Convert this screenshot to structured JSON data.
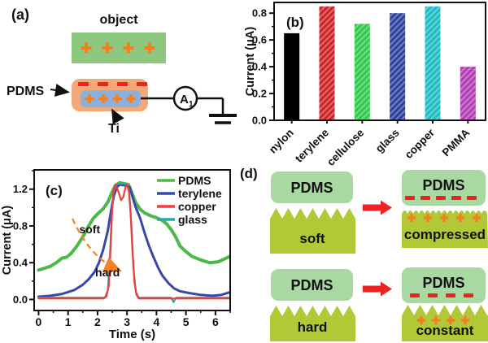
{
  "figure": {
    "panel_a": {
      "label": "(a)",
      "object_label": "object",
      "pdms_label": "PDMS",
      "ti_label": "Ti",
      "ammeter_label": "A",
      "ammeter_sub": "1",
      "colors": {
        "object_fill": "#8dc87e",
        "pdms_fill": "#f3a977",
        "electrode_fill": "#8ab0dc",
        "plus_charge": "#f57e20",
        "minus_charge": "#ee2222"
      }
    },
    "panel_d": {
      "label": "(d)",
      "rows": [
        {
          "pdms_top": "PDMS",
          "state": "soft",
          "pdms_result": "PDMS",
          "result_state": "compressed"
        },
        {
          "pdms_top": "PDMS",
          "state": "hard",
          "pdms_result": "PDMS",
          "result_state": "constant"
        }
      ],
      "colors": {
        "pdms_fill": "#a9d8a2",
        "block_fill": "#b3c836",
        "arrow": "#ee2222",
        "plus_charge": "#f57e20",
        "minus_charge": "#ee2222"
      }
    }
  },
  "chart_data": [
    {
      "panel": "b",
      "type": "bar",
      "title_label": "(b)",
      "categories": [
        "nylon",
        "terylene",
        "cellulose",
        "glass",
        "copper",
        "PMMA"
      ],
      "values": [
        0.65,
        0.85,
        0.72,
        0.8,
        0.85,
        0.4
      ],
      "bar_colors": [
        "#000000",
        "#cd2027",
        "#2ec84b",
        "#2c3e9c",
        "#1cbcc4",
        "#b13cb4"
      ],
      "hatched": [
        false,
        true,
        true,
        true,
        true,
        true
      ],
      "xlabel": "",
      "ylabel": "Current (μA)",
      "ylim": [
        0,
        0.88
      ],
      "yticks": [
        0,
        0.2,
        0.4,
        0.6,
        0.8
      ],
      "ytick_labels": [
        "0.0",
        "0.2",
        "0.4",
        "0.6",
        "0.8"
      ],
      "yminor_step": 0.1,
      "grid": false,
      "legend_position": "none"
    },
    {
      "panel": "c",
      "type": "line",
      "title_label": "(c)",
      "xlabel": "Time (s)",
      "ylabel": "Current (μA)",
      "xlim": [
        -0.15,
        6.5
      ],
      "ylim": [
        -0.12,
        1.41
      ],
      "xticks": [
        0,
        1,
        2,
        3,
        4,
        5,
        6
      ],
      "xtick_labels": [
        "0",
        "1",
        "2",
        "3",
        "4",
        "5",
        "6"
      ],
      "xminor_step": 0.5,
      "yticks": [
        0,
        0.4,
        0.8,
        1.2
      ],
      "ytick_labels": [
        "0.0",
        "0.4",
        "0.8",
        "1.2"
      ],
      "yminor_step": 0.2,
      "grid": false,
      "legend_position": "top-right",
      "legend": [
        "PDMS",
        "terylene",
        "copper",
        "glass"
      ],
      "series": [
        {
          "name": "PDMS",
          "color": "#4cb84a",
          "width": 4,
          "points": [
            [
              0,
              0.32
            ],
            [
              0.2,
              0.34
            ],
            [
              0.4,
              0.36
            ],
            [
              0.6,
              0.4
            ],
            [
              0.8,
              0.45
            ],
            [
              0.95,
              0.46
            ],
            [
              1.1,
              0.5
            ],
            [
              1.3,
              0.58
            ],
            [
              1.5,
              0.68
            ],
            [
              1.7,
              0.8
            ],
            [
              1.85,
              0.88
            ],
            [
              2.0,
              0.93
            ],
            [
              2.2,
              0.99
            ],
            [
              2.35,
              1.06
            ],
            [
              2.5,
              1.17
            ],
            [
              2.6,
              1.24
            ],
            [
              2.75,
              1.27
            ],
            [
              2.9,
              1.26
            ],
            [
              3.05,
              1.25
            ],
            [
              3.15,
              1.17
            ],
            [
              3.3,
              1.05
            ],
            [
              3.45,
              0.98
            ],
            [
              3.6,
              0.94
            ],
            [
              3.8,
              0.91
            ],
            [
              4.0,
              0.89
            ],
            [
              4.2,
              0.86
            ],
            [
              4.35,
              0.82
            ],
            [
              4.5,
              0.76
            ],
            [
              4.65,
              0.68
            ],
            [
              4.8,
              0.58
            ],
            [
              5.0,
              0.52
            ],
            [
              5.2,
              0.47
            ],
            [
              5.5,
              0.43
            ],
            [
              5.8,
              0.4
            ],
            [
              6.1,
              0.41
            ],
            [
              6.3,
              0.44
            ],
            [
              6.5,
              0.47
            ]
          ]
        },
        {
          "name": "terylene",
          "color": "#3948a8",
          "width": 3,
          "points": [
            [
              0,
              0.03
            ],
            [
              0.4,
              0.04
            ],
            [
              0.8,
              0.06
            ],
            [
              1.2,
              0.1
            ],
            [
              1.5,
              0.16
            ],
            [
              1.7,
              0.22
            ],
            [
              1.9,
              0.3
            ],
            [
              2.05,
              0.4
            ],
            [
              2.2,
              0.55
            ],
            [
              2.35,
              0.75
            ],
            [
              2.45,
              0.95
            ],
            [
              2.55,
              1.12
            ],
            [
              2.65,
              1.22
            ],
            [
              2.75,
              1.25
            ],
            [
              2.95,
              1.24
            ],
            [
              3.1,
              1.22
            ],
            [
              3.2,
              1.1
            ],
            [
              3.3,
              1.0
            ],
            [
              3.45,
              0.88
            ],
            [
              3.6,
              0.72
            ],
            [
              3.75,
              0.58
            ],
            [
              3.9,
              0.46
            ],
            [
              4.05,
              0.35
            ],
            [
              4.2,
              0.26
            ],
            [
              4.4,
              0.18
            ],
            [
              4.6,
              0.12
            ],
            [
              4.8,
              0.09
            ],
            [
              5.1,
              0.07
            ],
            [
              5.5,
              0.05
            ],
            [
              5.9,
              0.04
            ],
            [
              6.2,
              0.05
            ],
            [
              6.5,
              0.08
            ]
          ]
        },
        {
          "name": "glass",
          "color": "#2aa8a2",
          "width": 2.2,
          "points": [
            [
              0,
              0.02
            ],
            [
              2.25,
              0.02
            ],
            [
              2.35,
              0.1
            ],
            [
              2.42,
              0.45
            ],
            [
              2.48,
              0.9
            ],
            [
              2.54,
              1.15
            ],
            [
              2.6,
              1.24
            ],
            [
              2.7,
              1.26
            ],
            [
              2.85,
              1.26
            ],
            [
              3.0,
              1.25
            ],
            [
              3.08,
              1.15
            ],
            [
              3.15,
              0.8
            ],
            [
              3.22,
              0.35
            ],
            [
              3.3,
              0.08
            ],
            [
              3.4,
              0.02
            ],
            [
              4.5,
              0.02
            ],
            [
              4.58,
              -0.03
            ],
            [
              4.66,
              0.02
            ],
            [
              6.5,
              0.02
            ]
          ]
        },
        {
          "name": "copper",
          "color": "#f23b3b",
          "width": 2.2,
          "points": [
            [
              0,
              0.01
            ],
            [
              2.2,
              0.01
            ],
            [
              2.3,
              0.03
            ],
            [
              2.38,
              0.15
            ],
            [
              2.44,
              0.55
            ],
            [
              2.5,
              1.0
            ],
            [
              2.55,
              1.2
            ],
            [
              2.62,
              1.25
            ],
            [
              2.7,
              1.18
            ],
            [
              2.8,
              1.08
            ],
            [
              2.88,
              1.12
            ],
            [
              2.95,
              1.22
            ],
            [
              3.0,
              1.25
            ],
            [
              3.06,
              1.2
            ],
            [
              3.12,
              0.95
            ],
            [
              3.18,
              0.55
            ],
            [
              3.25,
              0.2
            ],
            [
              3.32,
              0.05
            ],
            [
              3.4,
              0.01
            ],
            [
              6.5,
              0.01
            ]
          ]
        }
      ],
      "annotations": {
        "soft_label": "soft",
        "hard_label": "hard",
        "soft_pos": [
          1.38,
          0.72
        ],
        "hard_pos": [
          1.92,
          0.25
        ],
        "arrow_from": [
          1.15,
          0.88
        ],
        "arrow_to": [
          2.72,
          0.32
        ],
        "arrow_color": "#f58220"
      }
    }
  ]
}
